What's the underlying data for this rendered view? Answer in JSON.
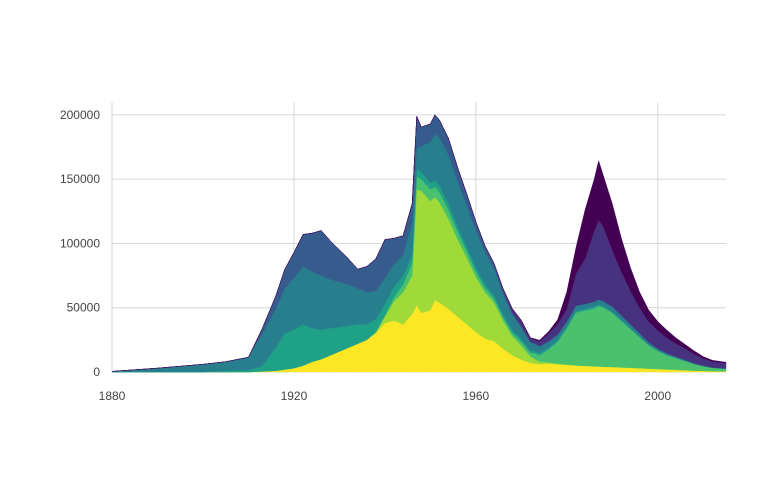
{
  "chart_data": {
    "type": "area",
    "stacked": true,
    "title": "",
    "xlabel": "",
    "ylabel": "",
    "xlim": [
      1880,
      2015
    ],
    "ylim": [
      0,
      210000
    ],
    "x_ticks": [
      1880,
      1920,
      1960,
      2000
    ],
    "y_ticks": [
      0,
      50000,
      100000,
      150000,
      200000
    ],
    "y_tick_labels": [
      "0",
      "50000",
      "100000",
      "150000",
      "200000"
    ],
    "grid": true,
    "legend": "none",
    "x": [
      1880,
      1890,
      1900,
      1905,
      1910,
      1913,
      1916,
      1918,
      1920,
      1922,
      1924,
      1926,
      1928,
      1930,
      1932,
      1934,
      1936,
      1938,
      1940,
      1942,
      1944,
      1946,
      1947,
      1948,
      1950,
      1951,
      1952,
      1954,
      1956,
      1958,
      1960,
      1962,
      1964,
      1966,
      1968,
      1970,
      1972,
      1973,
      1974,
      1976,
      1978,
      1980,
      1982,
      1984,
      1986,
      1987,
      1988,
      1990,
      1992,
      1994,
      1996,
      1998,
      2000,
      2002,
      2004,
      2006,
      2008,
      2010,
      2012,
      2015
    ],
    "series": [
      {
        "color": "#fde725",
        "values": [
          0,
          0,
          0,
          0,
          0,
          500,
          1000,
          2000,
          3000,
          5000,
          8000,
          10000,
          13000,
          16000,
          19000,
          22000,
          25000,
          30000,
          38000,
          40000,
          37000,
          45000,
          52000,
          46000,
          48000,
          56000,
          54000,
          49000,
          43000,
          37000,
          31000,
          26000,
          24000,
          18000,
          13000,
          9500,
          7000,
          6500,
          6000,
          6500,
          6000,
          5500,
          5000,
          4800,
          4500,
          4300,
          4100,
          3900,
          3600,
          3300,
          3000,
          2600,
          2300,
          2000,
          1700,
          1400,
          1100,
          900,
          700,
          500
        ]
      },
      {
        "color": "#a0da39",
        "values": [
          0,
          0,
          0,
          0,
          0,
          0,
          0,
          0,
          0,
          0,
          0,
          0,
          0,
          0,
          0,
          0,
          0,
          1000,
          5000,
          15000,
          25000,
          30000,
          90000,
          95000,
          85000,
          80000,
          78000,
          70000,
          60000,
          52000,
          43000,
          36000,
          30000,
          22000,
          15000,
          11000,
          5000,
          3500,
          2000,
          1000,
          500,
          300,
          200,
          0,
          0,
          0,
          0,
          0,
          0,
          0,
          0,
          0,
          0,
          0,
          0,
          0,
          0,
          0,
          0,
          0
        ]
      },
      {
        "color": "#4ac16d",
        "values": [
          0,
          0,
          0,
          0,
          0,
          0,
          0,
          0,
          0,
          0,
          0,
          0,
          0,
          0,
          0,
          0,
          0,
          0,
          1000,
          3000,
          6000,
          10000,
          10000,
          9000,
          9000,
          8000,
          8000,
          7000,
          6000,
          5000,
          4000,
          3500,
          3000,
          2500,
          2500,
          3000,
          3000,
          4500,
          5000,
          10000,
          17000,
          28000,
          41000,
          43000,
          45000,
          47000,
          46000,
          42000,
          36000,
          30000,
          24000,
          18000,
          14000,
          11000,
          9000,
          7000,
          5000,
          3500,
          2500,
          2000
        ]
      },
      {
        "color": "#1fa187",
        "values": [
          0,
          0,
          0,
          1000,
          1500,
          4000,
          18000,
          28000,
          30000,
          32000,
          26000,
          23000,
          21000,
          19000,
          17000,
          15000,
          12000,
          10000,
          9000,
          8000,
          7000,
          6000,
          6000,
          5500,
          5000,
          5000,
          5000,
          4500,
          4000,
          3500,
          3000,
          2800,
          2500,
          2300,
          2100,
          2000,
          1800,
          1700,
          1700,
          1600,
          1500,
          1400,
          1300,
          1200,
          1200,
          1100,
          1100,
          1000,
          900,
          800,
          700,
          600,
          500,
          400,
          300,
          300,
          200,
          200,
          100,
          100
        ]
      },
      {
        "color": "#277f8e",
        "values": [
          500,
          3000,
          6000,
          7000,
          10000,
          25000,
          30000,
          35000,
          40000,
          45000,
          44000,
          42000,
          38000,
          35000,
          32000,
          28000,
          25000,
          22000,
          20000,
          18000,
          16000,
          25000,
          16000,
          20000,
          32000,
          36000,
          37000,
          38000,
          35000,
          32000,
          29000,
          25000,
          21000,
          16000,
          12000,
          9000,
          6000,
          5500,
          5000,
          4500,
          4000,
          4000,
          4000,
          4000,
          4000,
          4000,
          4000,
          4000,
          3500,
          3000,
          2500,
          2000,
          1500,
          1200,
          1000,
          800,
          600,
          400,
          300,
          200
        ]
      },
      {
        "color": "#365c8d",
        "values": [
          0,
          0,
          0,
          0,
          0,
          4000,
          10000,
          15000,
          20000,
          25000,
          30000,
          35000,
          30000,
          25000,
          20000,
          15000,
          20000,
          25000,
          30000,
          20000,
          15000,
          15000,
          25000,
          15000,
          14000,
          15000,
          14000,
          13000,
          11000,
          9000,
          7000,
          5000,
          3500,
          2500,
          1800,
          1200,
          800,
          600,
          500,
          400,
          300,
          200,
          100,
          0,
          0,
          0,
          0,
          0,
          0,
          0,
          0,
          0,
          0,
          0,
          0,
          0,
          0,
          0,
          0,
          0
        ]
      },
      {
        "color": "#46327e",
        "values": [
          0,
          0,
          0,
          0,
          0,
          0,
          0,
          0,
          0,
          0,
          0,
          0,
          0,
          0,
          0,
          0,
          0,
          0,
          0,
          0,
          0,
          0,
          0,
          0,
          0,
          0,
          0,
          0,
          0,
          0,
          0,
          0,
          500,
          1500,
          3000,
          4500,
          3000,
          3000,
          3500,
          6000,
          8000,
          10000,
          25000,
          35000,
          55000,
          62000,
          58000,
          44000,
          34000,
          26000,
          20000,
          16000,
          14000,
          12000,
          10000,
          9000,
          7000,
          5500,
          4500,
          4000
        ]
      },
      {
        "color": "#440154",
        "values": [
          0,
          0,
          0,
          0,
          0,
          0,
          0,
          0,
          0,
          0,
          0,
          0,
          0,
          0,
          0,
          0,
          0,
          0,
          0,
          0,
          0,
          0,
          0,
          0,
          0,
          0,
          0,
          0,
          0,
          0,
          0,
          0,
          0,
          0,
          0,
          0,
          0,
          500,
          1000,
          1500,
          3500,
          13000,
          20000,
          38000,
          40000,
          46000,
          40000,
          36000,
          26000,
          18000,
          12000,
          9000,
          7000,
          6000,
          4500,
          3000,
          2500,
          1500,
          1000,
          800
        ]
      }
    ]
  }
}
